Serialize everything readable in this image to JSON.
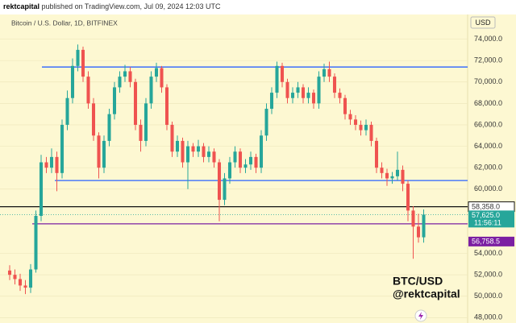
{
  "header": {
    "publisher": "rektcapital",
    "published_text": "published on TradingView.com, Jul 09, 2024 12:03 UTC"
  },
  "chart_data": {
    "type": "candlestick",
    "title": "Bitcoin / U.S. Dollar, 1D, BITFINEX",
    "currency": "USD",
    "annotation": [
      "BTC/USD",
      "@rektcapital"
    ],
    "up_color": "#26a69a",
    "down_color": "#ef5350",
    "grid": true,
    "ylim": [
      47500,
      76300
    ],
    "yticks": [
      {
        "value": 48000,
        "label": "48,000.0"
      },
      {
        "value": 50000,
        "label": "50,000.0"
      },
      {
        "value": 52000,
        "label": "52,000.0"
      },
      {
        "value": 54000,
        "label": "54,000.0"
      },
      {
        "value": 60000,
        "label": "60,000.0"
      },
      {
        "value": 62000,
        "label": "62,000.0"
      },
      {
        "value": 64000,
        "label": "64,000.0"
      },
      {
        "value": 66000,
        "label": "66,000.0"
      },
      {
        "value": 68000,
        "label": "68,000.0"
      },
      {
        "value": 70000,
        "label": "70,000.0"
      },
      {
        "value": 72000,
        "label": "72,000.0"
      },
      {
        "value": 74000,
        "label": "74,000.0"
      }
    ],
    "levels": [
      {
        "value": 71400,
        "color": "#2962ff"
      },
      {
        "value": 60800,
        "color": "#2962ff"
      },
      {
        "value": 58358,
        "label": "58,358.0",
        "color": "#111111"
      },
      {
        "value": 56758.5,
        "label": "56,758.5",
        "color": "#7b1fa2"
      }
    ],
    "last_price": {
      "value": 57625,
      "label": "57,625.0",
      "countdown": "11:56:11",
      "color": "#26a69a"
    },
    "open": [
      52400,
      52000,
      51600,
      51000,
      50800,
      52500,
      57500,
      62500,
      62000,
      63000,
      61500,
      66000,
      68500,
      71500,
      73000,
      70500,
      68000,
      65000,
      62000,
      64500,
      67000,
      69500,
      70500,
      71000,
      70000,
      66000,
      64500,
      68000,
      70500,
      71300,
      69500,
      66000,
      63500,
      64500,
      62500,
      64000,
      63500,
      64000,
      63000,
      63500,
      62500,
      59000,
      61000,
      62500,
      63500,
      62000,
      62300,
      63000,
      62000,
      65000,
      67500,
      69000,
      71500,
      70000,
      68500,
      69000,
      69500,
      68500,
      69000,
      68000,
      70500,
      71200,
      70500,
      69000,
      68500,
      67000,
      66500,
      66000,
      65500,
      66000,
      64500,
      62000,
      61500,
      61000,
      61200,
      61800,
      60500,
      58000,
      56500,
      55500
    ],
    "high": [
      52900,
      52500,
      52100,
      51500,
      53000,
      58000,
      63200,
      63000,
      63800,
      63500,
      66500,
      69200,
      72200,
      73500,
      73300,
      71000,
      68500,
      65300,
      65000,
      67500,
      70000,
      71000,
      71600,
      71400,
      70300,
      66500,
      68500,
      71000,
      71800,
      71500,
      69800,
      66300,
      65000,
      64800,
      64500,
      64300,
      64600,
      64300,
      64000,
      63800,
      62800,
      61500,
      63000,
      64000,
      63800,
      62800,
      63500,
      63300,
      65500,
      68000,
      69500,
      71900,
      71800,
      70300,
      69500,
      70000,
      69800,
      69500,
      69300,
      71000,
      71700,
      71900,
      70800,
      69400,
      68800,
      67400,
      66900,
      66400,
      66500,
      66300,
      64800,
      62500,
      61900,
      61600,
      63500,
      62200,
      60800,
      58400,
      57700,
      58100
    ],
    "low": [
      51500,
      51100,
      50500,
      50200,
      50300,
      52200,
      57000,
      61500,
      61500,
      59800,
      61000,
      65500,
      68000,
      71000,
      70000,
      67500,
      64500,
      61000,
      61500,
      64000,
      66500,
      69000,
      70000,
      69500,
      65500,
      63500,
      64000,
      67500,
      70000,
      69000,
      65500,
      63000,
      63000,
      62000,
      60000,
      63000,
      63000,
      62500,
      62500,
      62000,
      57000,
      58500,
      60500,
      62000,
      61500,
      61500,
      61800,
      61500,
      61500,
      64500,
      67000,
      68500,
      69500,
      68000,
      68000,
      68500,
      68000,
      68000,
      67500,
      67500,
      70000,
      70000,
      68500,
      68000,
      66500,
      66000,
      65500,
      65000,
      65000,
      64000,
      61500,
      61000,
      60300,
      60500,
      60800,
      59800,
      57000,
      53500,
      55000,
      55000
    ],
    "close": [
      52000,
      51600,
      51000,
      50800,
      52500,
      57500,
      62500,
      62000,
      63000,
      61500,
      66000,
      68500,
      71500,
      73000,
      70500,
      68000,
      65000,
      62000,
      64500,
      67000,
      69500,
      70500,
      71000,
      70000,
      66000,
      64500,
      68000,
      70500,
      71300,
      69500,
      66000,
      63500,
      64500,
      62500,
      64000,
      63500,
      64000,
      63000,
      63500,
      62500,
      59000,
      61000,
      62500,
      63500,
      62000,
      62300,
      63000,
      62000,
      65000,
      67500,
      69000,
      71500,
      70000,
      68500,
      69000,
      69500,
      68500,
      69000,
      68000,
      70500,
      71200,
      70500,
      69000,
      68500,
      67000,
      66500,
      66000,
      65500,
      66000,
      64500,
      62000,
      61500,
      61000,
      61200,
      61800,
      60500,
      58000,
      56500,
      55500,
      57625
    ]
  }
}
